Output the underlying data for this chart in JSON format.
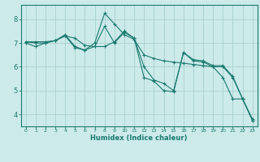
{
  "xlabel": "Humidex (Indice chaleur)",
  "bg_color": "#cceaea",
  "grid_color": "#aacfcf",
  "line_color": "#1a7a6e",
  "xlim": [
    -0.5,
    23.5
  ],
  "ylim": [
    3.5,
    8.6
  ],
  "xticks": [
    0,
    1,
    2,
    3,
    4,
    5,
    6,
    7,
    8,
    9,
    10,
    11,
    12,
    13,
    14,
    15,
    16,
    17,
    18,
    19,
    20,
    21,
    22,
    23
  ],
  "yticks": [
    4,
    5,
    6,
    7,
    8
  ],
  "lines": [
    [
      0,
      7.0,
      1,
      6.85,
      2,
      7.0,
      3,
      7.1,
      4,
      7.35,
      5,
      6.85,
      6,
      6.7,
      7,
      7.0,
      8,
      8.25,
      9,
      7.8,
      10,
      7.35,
      11,
      7.15,
      12,
      6.5,
      13,
      6.35,
      14,
      6.25,
      15,
      6.2,
      16,
      6.15,
      17,
      6.1,
      18,
      6.05,
      19,
      6.0,
      20,
      5.55,
      21,
      4.65,
      22,
      4.65,
      23,
      3.75
    ],
    [
      0,
      7.05,
      1,
      7.05,
      2,
      7.05,
      3,
      7.1,
      4,
      7.3,
      5,
      7.2,
      6,
      6.9,
      7,
      6.85,
      8,
      6.85,
      9,
      7.05,
      10,
      7.5,
      11,
      7.2,
      12,
      5.55,
      13,
      5.4,
      14,
      5.0,
      15,
      4.95,
      16,
      6.6,
      17,
      6.3,
      18,
      6.25,
      19,
      6.05,
      20,
      6.05,
      21,
      5.6,
      22,
      4.65,
      23,
      3.8
    ],
    [
      0,
      7.05,
      1,
      7.0,
      2,
      7.0,
      3,
      7.1,
      4,
      7.3,
      5,
      6.8,
      6,
      6.7,
      7,
      6.85,
      8,
      7.7,
      9,
      7.0,
      10,
      7.45,
      11,
      7.2,
      12,
      6.0,
      13,
      5.45,
      14,
      5.3,
      15,
      5.0,
      16,
      6.6,
      17,
      6.25,
      18,
      6.2,
      19,
      6.0,
      20,
      6.0,
      21,
      5.55,
      22,
      4.65,
      23,
      3.75
    ]
  ]
}
